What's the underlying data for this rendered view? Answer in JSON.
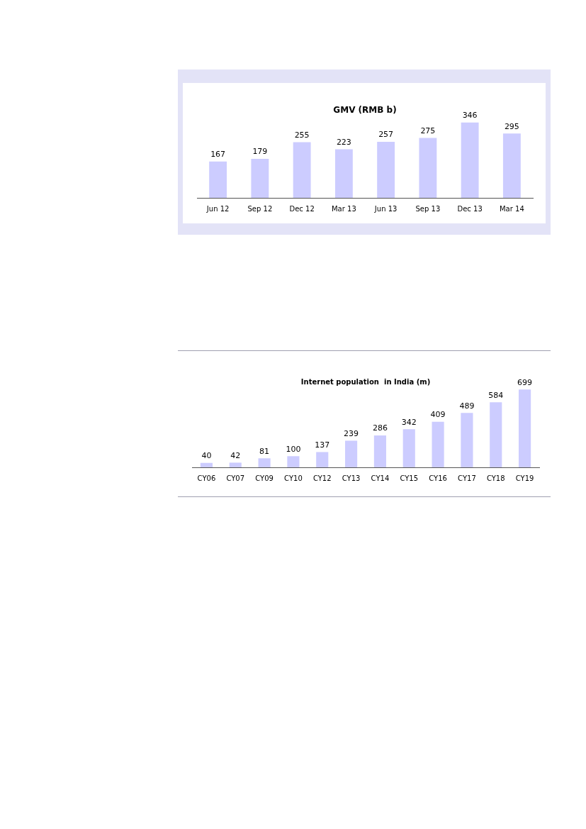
{
  "chart_data": [
    {
      "type": "bar",
      "title": "GMV (RMB b)",
      "categories": [
        "Jun 12",
        "Sep 12",
        "Dec 12",
        "Mar 13",
        "Jun 13",
        "Sep 13",
        "Dec 13",
        "Mar 14"
      ],
      "values": [
        167,
        179,
        255,
        223,
        257,
        275,
        346,
        295
      ],
      "color": "#ccccff",
      "data_labels": true,
      "grid": false,
      "legend": false,
      "tick_labels": "x"
    },
    {
      "type": "bar",
      "title": "Internet population  in India (m)",
      "categories": [
        "CY06",
        "CY07",
        "CY09",
        "CY10",
        "CY12",
        "CY13",
        "CY14",
        "CY15",
        "CY16",
        "CY17",
        "CY18",
        "CY19"
      ],
      "values": [
        40,
        42,
        81,
        100,
        137,
        239,
        286,
        342,
        409,
        489,
        584,
        699
      ],
      "color": "#ccccff",
      "data_labels": true,
      "grid": false,
      "legend": false,
      "tick_labels": "x"
    }
  ]
}
